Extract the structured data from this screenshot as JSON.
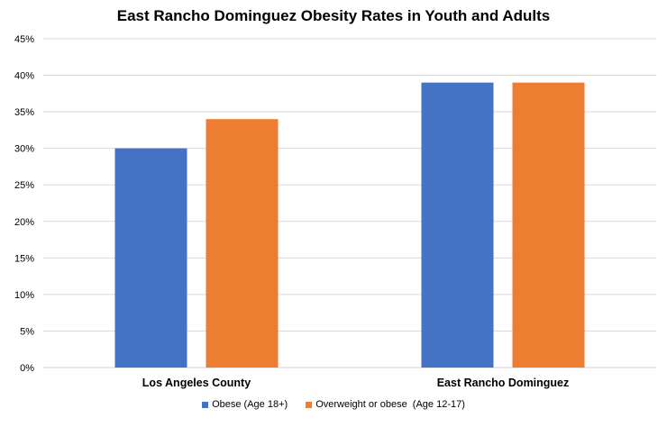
{
  "chart_data": {
    "type": "bar",
    "title": "East Rancho Dominguez Obesity Rates in Youth and Adults",
    "xlabel": "",
    "ylabel": "",
    "categories": [
      "Los Angeles County",
      "East Rancho Dominguez"
    ],
    "series": [
      {
        "name": "Obese (Age 18+)",
        "values": [
          30,
          39
        ],
        "color": "#4472C4"
      },
      {
        "name": "Overweight or obese  (Age 12-17)",
        "values": [
          34,
          39
        ],
        "color": "#ED7D31"
      }
    ],
    "ylim": [
      0,
      45
    ],
    "yticks": [
      0,
      5,
      10,
      15,
      20,
      25,
      30,
      35,
      40,
      45
    ],
    "ytick_labels": [
      "0%",
      "5%",
      "10%",
      "15%",
      "20%",
      "25%",
      "30%",
      "35%",
      "40%",
      "45%"
    ],
    "grid": true,
    "legend_position": "bottom"
  }
}
